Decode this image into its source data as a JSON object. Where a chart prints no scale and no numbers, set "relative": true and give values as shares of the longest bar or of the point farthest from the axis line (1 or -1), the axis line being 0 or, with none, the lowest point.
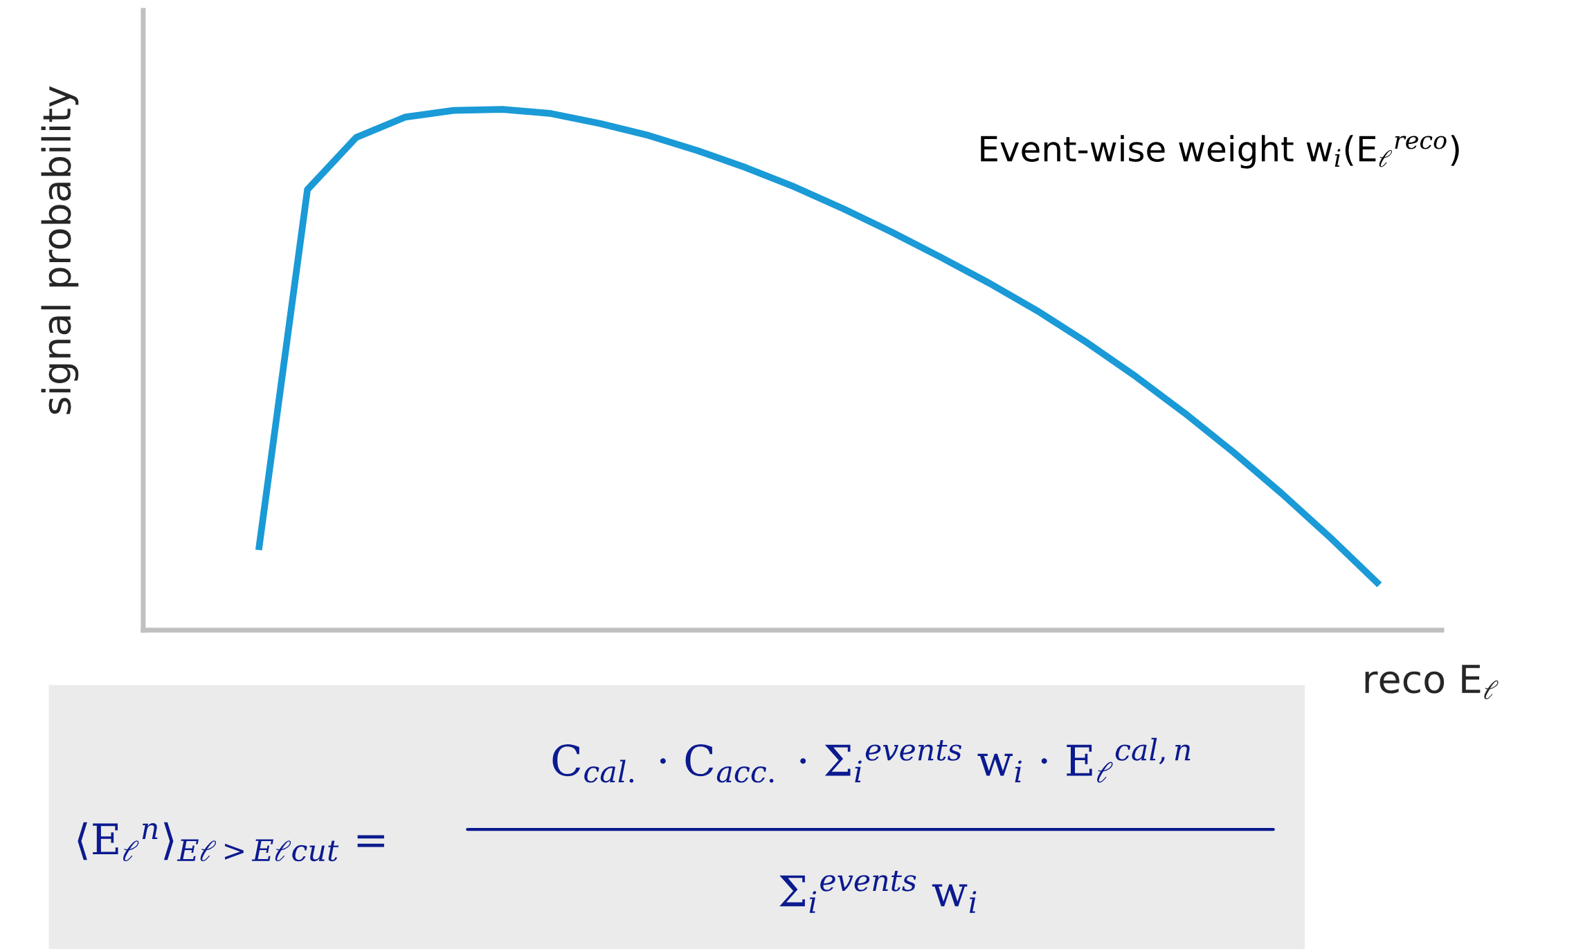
{
  "chart_data": {
    "type": "line",
    "relative": true,
    "categories": [
      null,
      null,
      null,
      null,
      null,
      null,
      null,
      null,
      null,
      null,
      null,
      null,
      null,
      null,
      null,
      null,
      null,
      null,
      null,
      null,
      null,
      null,
      null,
      null
    ],
    "series": [
      {
        "color": "#1a9ad6",
        "values": [
          0.154,
          0.846,
          0.946,
          0.985,
          0.998,
          1.0,
          0.992,
          0.973,
          0.95,
          0.921,
          0.888,
          0.851,
          0.809,
          0.764,
          0.716,
          0.666,
          0.612,
          0.552,
          0.487,
          0.417,
          0.342,
          0.262,
          0.177,
          0.087
        ]
      }
    ],
    "ylabel": "signal probability",
    "xlabel": "reco E$_{ℓ}$",
    "annotations": [
      "Event-wise weight w$_{i}$(E$_{ℓ}$$^{reco}$)",
      "⟨E$_{ℓ}$$^{n}$⟩$_{Eℓ>Eℓcut}$ =",
      "C$_{cal.}$ · C$_{acc.}$ · Σ$_{i}$$^{events}$ w$_{i}$ · E$_{ℓ}$$^{cal,n}$",
      "Σ$_{i}$$^{events}$ w$_{i}$"
    ]
  }
}
